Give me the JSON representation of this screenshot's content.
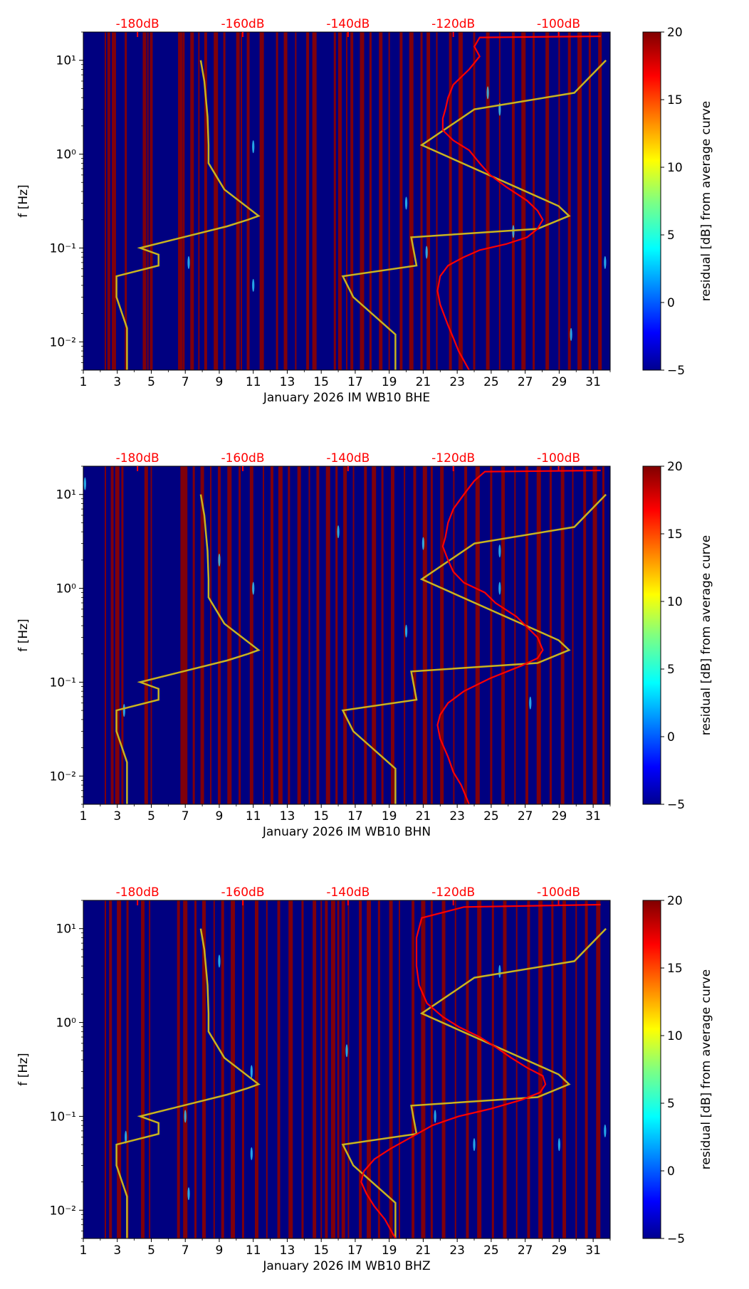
{
  "colors": {
    "background": "#000080",
    "red_band": "#8b0000",
    "red_curve": "#ff0000",
    "noise_model": "#c8b41e",
    "top_axis_text": "#ff0000"
  },
  "chart_data": [
    {
      "type": "heatmap",
      "xlabel": "January 2026 IM WB10  BHE",
      "ylabel": "f [Hz]",
      "colorbar_label": "residual [dB] from average curve",
      "x_ticks": [
        "1",
        "3",
        "5",
        "7",
        "9",
        "11",
        "13",
        "15",
        "17",
        "19",
        "21",
        "23",
        "25",
        "27",
        "29",
        "31"
      ],
      "y_ticks": [
        "10⁻²",
        "10⁻¹",
        "10⁰",
        "10¹"
      ],
      "top_ticks": [
        "-180dB",
        "-160dB",
        "-140dB",
        "-120dB",
        "-100dB"
      ],
      "colorbar_ticks": [
        "−5",
        "0",
        "5",
        "10",
        "15",
        "20"
      ],
      "xlim": [
        1,
        32
      ],
      "ylim": [
        0.005,
        20
      ],
      "yscale": "log",
      "clim": [
        -5,
        20
      ],
      "top_axis_db_range": [
        -190.3,
        -90.2
      ],
      "noise_model_curves": {
        "low": {
          "db": [
            -168.0,
            -167.3,
            -166.7,
            -166.5,
            -166.5,
            -163.5,
            -157.0,
            -159.0,
            -163.0,
            -179.5,
            -176.0,
            -176.0,
            -184.0,
            -184.0,
            -182.0,
            -182.0
          ],
          "f": [
            10.0,
            6.0,
            2.5,
            1.25,
            0.8,
            0.42,
            0.22,
            0.2,
            0.17,
            0.1,
            0.085,
            0.065,
            0.05,
            0.03,
            0.014,
            0.005
          ]
        },
        "high": {
          "db": [
            -91.0,
            -97.0,
            -116.0,
            -126.0,
            -100.0,
            -98.0,
            -104.0,
            -128.0,
            -127.0,
            -141.0,
            -139.0,
            -131.0,
            -131.0
          ],
          "f": [
            10.0,
            4.5,
            3.0,
            1.25,
            0.28,
            0.22,
            0.16,
            0.13,
            0.065,
            0.05,
            0.03,
            0.012,
            0.005
          ]
        }
      },
      "median_curve": {
        "db": [
          -92.0,
          -115.0,
          -116.0,
          -115.0,
          -117.0,
          -120.0,
          -121.0,
          -121.5,
          -122.0,
          -122.0,
          -120.0,
          -117.0,
          -115.0,
          -113.0,
          -110.0,
          -106.0,
          -104.0,
          -103.0,
          -104.0,
          -106.0,
          -110.0,
          -115.0,
          -118.0,
          -121.0,
          -122.5,
          -123.0,
          -122.5,
          -121.0,
          -120.0,
          -119.0,
          -117.0
        ],
        "f": [
          18.0,
          17.5,
          14.0,
          11.0,
          8.0,
          5.5,
          4.0,
          3.0,
          2.4,
          1.8,
          1.4,
          1.1,
          0.8,
          0.6,
          0.45,
          0.32,
          0.25,
          0.2,
          0.16,
          0.13,
          0.11,
          0.095,
          0.08,
          0.065,
          0.05,
          0.035,
          0.025,
          0.015,
          0.011,
          0.008,
          0.005
        ]
      },
      "red_bands": [
        2.3,
        2.5,
        2.8,
        3.5,
        4.6,
        4.8,
        5.0,
        6.7,
        6.9,
        7.4,
        7.8,
        8.2,
        8.8,
        9.3,
        10.1,
        10.3,
        10.7,
        11.5,
        12.4,
        12.9,
        13.5,
        14.2,
        14.6,
        15.8,
        16.1,
        16.5,
        16.8,
        17.4,
        17.9,
        18.5,
        19.0,
        19.7,
        20.3,
        20.9,
        21.3,
        21.8,
        22.6,
        23.2,
        24.0,
        24.8,
        25.5,
        26.3,
        26.9,
        27.5,
        28.3,
        29.0,
        29.6,
        30.2,
        30.8,
        31.4
      ],
      "speckles": [
        [
          7.2,
          0.07
        ],
        [
          11.0,
          1.2
        ],
        [
          11.0,
          0.04
        ],
        [
          20.0,
          0.3
        ],
        [
          21.2,
          0.09
        ],
        [
          24.8,
          4.5
        ],
        [
          25.5,
          3.0
        ],
        [
          26.3,
          0.15
        ],
        [
          29.7,
          0.012
        ],
        [
          31.7,
          0.07
        ]
      ]
    },
    {
      "type": "heatmap",
      "xlabel": "January 2026 IM WB10  BHN",
      "ylabel": "f [Hz]",
      "colorbar_label": "residual [dB] from average curve",
      "x_ticks": [
        "1",
        "3",
        "5",
        "7",
        "9",
        "11",
        "13",
        "15",
        "17",
        "19",
        "21",
        "23",
        "25",
        "27",
        "29",
        "31"
      ],
      "y_ticks": [
        "10⁻²",
        "10⁻¹",
        "10⁰",
        "10¹"
      ],
      "top_ticks": [
        "-180dB",
        "-160dB",
        "-140dB",
        "-120dB",
        "-100dB"
      ],
      "colorbar_ticks": [
        "−5",
        "0",
        "5",
        "10",
        "15",
        "20"
      ],
      "xlim": [
        1,
        32
      ],
      "ylim": [
        0.005,
        20
      ],
      "yscale": "log",
      "clim": [
        -5,
        20
      ],
      "top_axis_db_range": [
        -190.3,
        -90.2
      ],
      "noise_model_curves": {
        "low": {
          "db": [
            -168.0,
            -167.3,
            -166.7,
            -166.5,
            -166.5,
            -163.5,
            -157.0,
            -159.0,
            -163.0,
            -179.5,
            -176.0,
            -176.0,
            -184.0,
            -184.0,
            -182.0,
            -182.0
          ],
          "f": [
            10.0,
            6.0,
            2.5,
            1.25,
            0.8,
            0.42,
            0.22,
            0.2,
            0.17,
            0.1,
            0.085,
            0.065,
            0.05,
            0.03,
            0.014,
            0.005
          ]
        },
        "high": {
          "db": [
            -91.0,
            -97.0,
            -116.0,
            -126.0,
            -100.0,
            -98.0,
            -104.0,
            -128.0,
            -127.0,
            -141.0,
            -139.0,
            -131.0,
            -131.0
          ],
          "f": [
            10.0,
            4.5,
            3.0,
            1.25,
            0.28,
            0.22,
            0.16,
            0.13,
            0.065,
            0.05,
            0.03,
            0.012,
            0.005
          ]
        }
      },
      "median_curve": {
        "db": [
          -92.0,
          -114.0,
          -116.0,
          -118.0,
          -120.0,
          -121.0,
          -121.5,
          -122.0,
          -121.0,
          -120.0,
          -118.0,
          -114.0,
          -112.0,
          -108.0,
          -104.0,
          -103.0,
          -104.0,
          -107.0,
          -113.0,
          -118.0,
          -121.0,
          -122.5,
          -123.0,
          -122.5,
          -121.0,
          -120.0,
          -118.5,
          -117.0
        ],
        "f": [
          18.0,
          17.5,
          14.0,
          10.0,
          7.0,
          5.0,
          3.5,
          2.8,
          2.0,
          1.5,
          1.15,
          0.9,
          0.7,
          0.5,
          0.3,
          0.22,
          0.18,
          0.15,
          0.11,
          0.08,
          0.06,
          0.045,
          0.035,
          0.025,
          0.016,
          0.011,
          0.008,
          0.005
        ]
      },
      "red_bands": [
        2.3,
        2.7,
        3.0,
        3.3,
        4.7,
        5.0,
        6.8,
        7.0,
        7.5,
        8.0,
        8.5,
        9.0,
        9.6,
        10.2,
        10.9,
        11.6,
        12.1,
        12.6,
        13.1,
        13.7,
        14.3,
        14.8,
        15.4,
        15.9,
        16.4,
        16.9,
        17.6,
        18.1,
        18.6,
        19.2,
        19.9,
        20.5,
        21.1,
        21.5,
        22.1,
        22.8,
        23.5,
        24.2,
        25.0,
        25.7,
        26.4,
        27.1,
        27.8,
        28.5,
        29.2,
        29.8,
        30.5,
        31.1,
        31.6
      ],
      "speckles": [
        [
          1.1,
          13.0
        ],
        [
          3.4,
          0.05
        ],
        [
          9.0,
          2.0
        ],
        [
          11.0,
          1.0
        ],
        [
          16.0,
          4.0
        ],
        [
          20.0,
          0.35
        ],
        [
          21.0,
          3.0
        ],
        [
          25.5,
          1.0
        ],
        [
          25.5,
          2.5
        ],
        [
          27.3,
          0.06
        ]
      ]
    },
    {
      "type": "heatmap",
      "xlabel": "January 2026 IM WB10  BHZ",
      "ylabel": "f [Hz]",
      "colorbar_label": "residual [dB] from average curve",
      "x_ticks": [
        "1",
        "3",
        "5",
        "7",
        "9",
        "11",
        "13",
        "15",
        "17",
        "19",
        "21",
        "23",
        "25",
        "27",
        "29",
        "31"
      ],
      "y_ticks": [
        "10⁻²",
        "10⁻¹",
        "10⁰",
        "10¹"
      ],
      "top_ticks": [
        "-180dB",
        "-160dB",
        "-140dB",
        "-120dB",
        "-100dB"
      ],
      "colorbar_ticks": [
        "−5",
        "0",
        "5",
        "10",
        "15",
        "20"
      ],
      "xlim": [
        1,
        32
      ],
      "ylim": [
        0.005,
        20
      ],
      "yscale": "log",
      "clim": [
        -5,
        20
      ],
      "top_axis_db_range": [
        -190.3,
        -90.2
      ],
      "noise_model_curves": {
        "low": {
          "db": [
            -168.0,
            -167.3,
            -166.7,
            -166.5,
            -166.5,
            -163.5,
            -157.0,
            -159.0,
            -163.0,
            -179.5,
            -176.0,
            -176.0,
            -184.0,
            -184.0,
            -182.0,
            -182.0
          ],
          "f": [
            10.0,
            6.0,
            2.5,
            1.25,
            0.8,
            0.42,
            0.22,
            0.2,
            0.17,
            0.1,
            0.085,
            0.065,
            0.05,
            0.03,
            0.014,
            0.005
          ]
        },
        "high": {
          "db": [
            -91.0,
            -97.0,
            -116.0,
            -126.0,
            -100.0,
            -98.0,
            -104.0,
            -128.0,
            -127.0,
            -141.0,
            -139.0,
            -131.0,
            -131.0
          ],
          "f": [
            10.0,
            4.5,
            3.0,
            1.25,
            0.28,
            0.22,
            0.16,
            0.13,
            0.065,
            0.05,
            0.03,
            0.012,
            0.005
          ]
        }
      },
      "median_curve": {
        "db": [
          -92.0,
          -118.0,
          -126.0,
          -127.0,
          -127.0,
          -126.5,
          -125.0,
          -122.0,
          -119.0,
          -115.0,
          -112.0,
          -109.0,
          -106.0,
          -103.0,
          -102.5,
          -103.5,
          -107.0,
          -113.0,
          -119.0,
          -124.0,
          -128.0,
          -132.0,
          -135.0,
          -137.0,
          -137.5,
          -136.5,
          -135.0,
          -133.0,
          -131.0
        ],
        "f": [
          18.0,
          17.0,
          13.0,
          8.0,
          4.0,
          2.5,
          1.6,
          1.15,
          0.9,
          0.7,
          0.55,
          0.42,
          0.33,
          0.27,
          0.22,
          0.18,
          0.15,
          0.12,
          0.1,
          0.08,
          0.06,
          0.045,
          0.035,
          0.026,
          0.02,
          0.015,
          0.011,
          0.008,
          0.005
        ]
      },
      "red_bands": [
        2.3,
        2.6,
        3.1,
        3.6,
        4.5,
        4.9,
        6.6,
        7.0,
        7.6,
        8.1,
        8.7,
        9.2,
        9.8,
        10.4,
        11.2,
        11.8,
        12.5,
        13.2,
        13.9,
        14.6,
        15.0,
        15.3,
        15.7,
        16.0,
        16.3,
        16.6,
        17.3,
        17.8,
        18.4,
        19.1,
        19.6,
        20.4,
        21.0,
        21.5,
        22.2,
        22.9,
        23.6,
        24.3,
        25.1,
        25.8,
        26.5,
        27.2,
        27.9,
        28.6,
        29.3,
        30.0,
        30.6,
        31.3
      ],
      "speckles": [
        [
          3.5,
          0.06
        ],
        [
          7.0,
          0.1
        ],
        [
          7.2,
          0.015
        ],
        [
          9.0,
          4.5
        ],
        [
          10.9,
          0.04
        ],
        [
          10.9,
          0.3
        ],
        [
          16.5,
          0.5
        ],
        [
          21.7,
          0.1
        ],
        [
          24.0,
          0.05
        ],
        [
          25.5,
          3.5
        ],
        [
          29.0,
          0.05
        ],
        [
          31.7,
          0.07
        ]
      ]
    }
  ]
}
